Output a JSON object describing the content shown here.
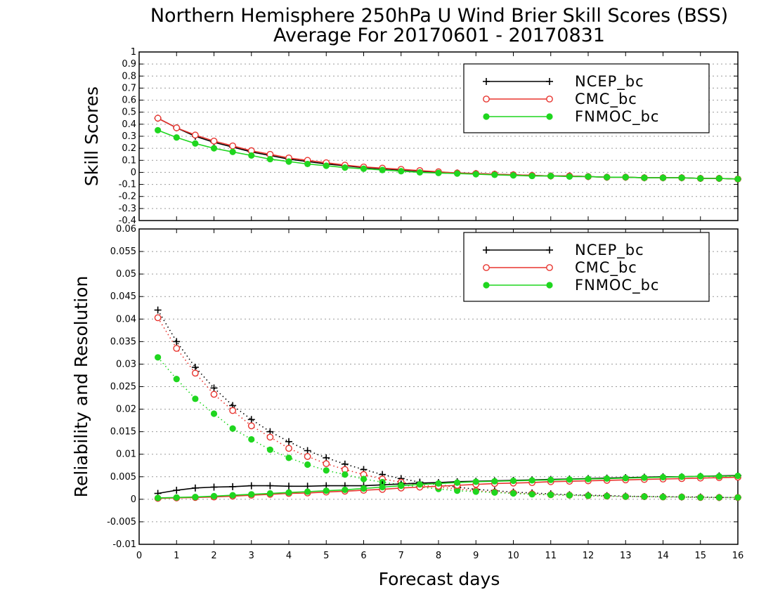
{
  "chart_data": {
    "type": "line",
    "title": "Northern Hemisphere 250hPa U Wind Brier Skill Scores (BSS)",
    "subtitle": "Average For 20170601 - 20170831",
    "xlabel": "Forecast days",
    "xlim": [
      0,
      16
    ],
    "xticks": [
      "0",
      "1",
      "2",
      "3",
      "4",
      "5",
      "6",
      "7",
      "8",
      "9",
      "10",
      "11",
      "12",
      "13",
      "14",
      "15",
      "16"
    ],
    "x": [
      0.5,
      1.0,
      1.5,
      2.0,
      2.5,
      3.0,
      3.5,
      4.0,
      4.5,
      5.0,
      5.5,
      6.0,
      6.5,
      7.0,
      7.5,
      8.0,
      8.5,
      9.0,
      9.5,
      10.0,
      10.5,
      11.0,
      11.5,
      12.0,
      12.5,
      13.0,
      13.5,
      14.0,
      14.5,
      15.0,
      15.5,
      16.0
    ],
    "series_styles": [
      {
        "name": "NCEP_bc",
        "color": "#000000",
        "marker": "plus"
      },
      {
        "name": "CMC_bc",
        "color": "#e8352f",
        "marker": "open-circle"
      },
      {
        "name": "FNMOC_bc",
        "color": "#1fd61f",
        "marker": "filled-circle"
      }
    ],
    "panels": [
      {
        "ylabel": "Skill Scores",
        "ylim": [
          -0.4,
          1
        ],
        "yticks": [
          "-0.4",
          "-0.3",
          "-0.2",
          "-0.1",
          "0",
          "0.1",
          "0.2",
          "0.3",
          "0.4",
          "0.5",
          "0.6",
          "0.7",
          "0.8",
          "0.9",
          "1"
        ],
        "legend": "top-right",
        "grid": true,
        "series": [
          {
            "name": "NCEP_bc",
            "style": "solid",
            "values": [
              0.45,
              0.37,
              0.3,
              0.25,
              0.21,
              0.17,
              0.14,
              0.11,
              0.09,
              0.07,
              0.055,
              0.04,
              0.03,
              0.02,
              0.01,
              0.0,
              -0.005,
              -0.01,
              -0.015,
              -0.02,
              -0.025,
              -0.03,
              -0.03,
              -0.035,
              -0.04,
              -0.04,
              -0.045,
              -0.045,
              -0.045,
              -0.05,
              -0.05,
              -0.055
            ]
          },
          {
            "name": "CMC_bc",
            "style": "solid",
            "values": [
              0.45,
              0.37,
              0.31,
              0.26,
              0.22,
              0.18,
              0.15,
              0.12,
              0.1,
              0.08,
              0.06,
              0.045,
              0.035,
              0.025,
              0.015,
              0.005,
              -0.005,
              -0.01,
              -0.015,
              -0.02,
              -0.025,
              -0.03,
              -0.03,
              -0.035,
              -0.04,
              -0.04,
              -0.045,
              -0.045,
              -0.045,
              -0.05,
              -0.05,
              -0.055
            ]
          },
          {
            "name": "FNMOC_bc",
            "style": "solid",
            "values": [
              0.35,
              0.29,
              0.24,
              0.2,
              0.17,
              0.14,
              0.11,
              0.09,
              0.07,
              0.055,
              0.04,
              0.03,
              0.02,
              0.01,
              0.0,
              -0.005,
              -0.01,
              -0.015,
              -0.02,
              -0.025,
              -0.03,
              -0.03,
              -0.035,
              -0.035,
              -0.04,
              -0.04,
              -0.045,
              -0.045,
              -0.045,
              -0.05,
              -0.05,
              -0.055
            ]
          }
        ]
      },
      {
        "ylabel": "Reliability and Resolution",
        "ylim": [
          -0.01,
          0.06
        ],
        "yticks": [
          "-0.01",
          "-0.005",
          "0",
          "0.005",
          "0.01",
          "0.015",
          "0.02",
          "0.025",
          "0.03",
          "0.035",
          "0.04",
          "0.045",
          "0.05",
          "0.055",
          "0.06"
        ],
        "legend": "top-right",
        "grid": true,
        "series": [
          {
            "name": "NCEP_bc",
            "style": "dotted",
            "values": [
              0.042,
              0.035,
              0.0293,
              0.0247,
              0.0208,
              0.0177,
              0.015,
              0.0128,
              0.0108,
              0.0092,
              0.0078,
              0.0066,
              0.0055,
              0.0046,
              0.0038,
              0.0032,
              0.0027,
              0.0022,
              0.0019,
              0.0016,
              0.0014,
              0.0012,
              0.001,
              0.0009,
              0.0008,
              0.0007,
              0.0006,
              0.0006,
              0.0005,
              0.0005,
              0.0004,
              0.0004
            ]
          },
          {
            "name": "CMC_bc",
            "style": "dotted",
            "values": [
              0.0403,
              0.0335,
              0.028,
              0.0233,
              0.0197,
              0.0163,
              0.0138,
              0.0113,
              0.0095,
              0.0079,
              0.0066,
              0.0055,
              0.0045,
              0.0038,
              0.0032,
              0.0027,
              0.0023,
              0.0019,
              0.0016,
              0.0014,
              0.0012,
              0.001,
              0.0009,
              0.0008,
              0.0007,
              0.0006,
              0.0006,
              0.0005,
              0.0005,
              0.0004,
              0.0004,
              0.0004
            ]
          },
          {
            "name": "FNMOC_bc",
            "style": "dotted",
            "values": [
              0.0315,
              0.0267,
              0.0223,
              0.019,
              0.0157,
              0.0133,
              0.011,
              0.0092,
              0.0077,
              0.0064,
              0.0055,
              0.0045,
              0.0038,
              0.0032,
              0.0027,
              0.0023,
              0.0019,
              0.0017,
              0.0015,
              0.0013,
              0.0011,
              0.001,
              0.0009,
              0.0008,
              0.0007,
              0.0006,
              0.0006,
              0.0005,
              0.0005,
              0.0004,
              0.0004,
              0.0004
            ]
          },
          {
            "name": "NCEP_bc",
            "style": "solid",
            "values": [
              0.0013,
              0.002,
              0.0025,
              0.0027,
              0.0028,
              0.003,
              0.003,
              0.0029,
              0.0029,
              0.003,
              0.003,
              0.003,
              0.0032,
              0.0034,
              0.0036,
              0.0037,
              0.0039,
              0.004,
              0.0041,
              0.0042,
              0.0043,
              0.0044,
              0.0045,
              0.0046,
              0.0047,
              0.0048,
              0.0049,
              0.005,
              0.005,
              0.0051,
              0.0052,
              0.0053
            ]
          },
          {
            "name": "CMC_bc",
            "style": "solid",
            "values": [
              0.0002,
              0.0003,
              0.0004,
              0.0005,
              0.0007,
              0.0009,
              0.0011,
              0.0013,
              0.0014,
              0.0016,
              0.0018,
              0.002,
              0.0022,
              0.0025,
              0.0027,
              0.0029,
              0.0031,
              0.0033,
              0.0035,
              0.0036,
              0.0037,
              0.0039,
              0.004,
              0.0041,
              0.0042,
              0.0043,
              0.0044,
              0.0045,
              0.0046,
              0.0047,
              0.0048,
              0.0049
            ]
          },
          {
            "name": "FNMOC_bc",
            "style": "solid",
            "values": [
              0.0003,
              0.0004,
              0.0005,
              0.0007,
              0.0009,
              0.0011,
              0.0013,
              0.0015,
              0.0017,
              0.0019,
              0.0021,
              0.0024,
              0.0027,
              0.003,
              0.0033,
              0.0035,
              0.0037,
              0.0039,
              0.004,
              0.0041,
              0.0042,
              0.0043,
              0.0044,
              0.0045,
              0.0046,
              0.0047,
              0.0048,
              0.0049,
              0.005,
              0.0051,
              0.0051,
              0.0052
            ]
          }
        ]
      }
    ]
  }
}
